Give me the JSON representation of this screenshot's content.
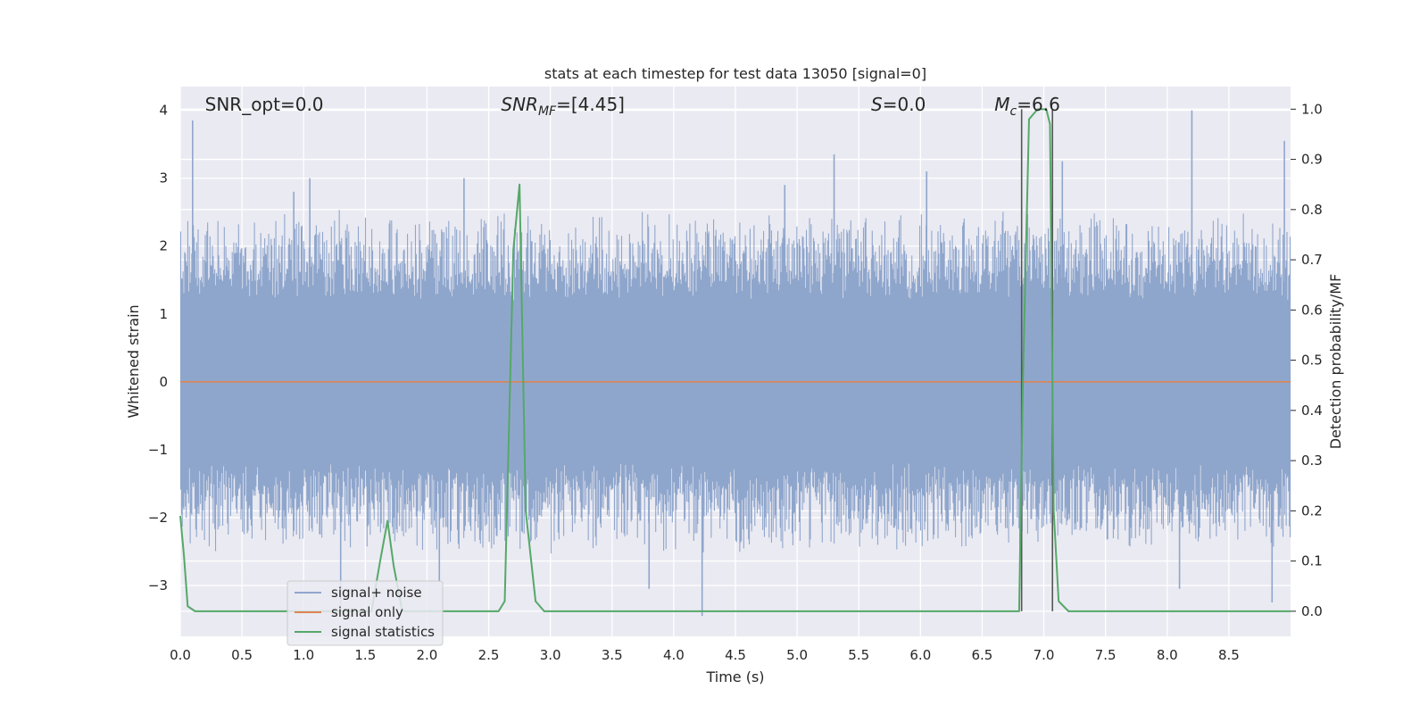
{
  "chart_data": {
    "type": "line",
    "title": "stats at each timestep for test data 13050 [signal=0]",
    "xlabel": "Time (s)",
    "ylabel_left": "Whitened strain",
    "ylabel_right": "Detection probability/MF",
    "xlim": [
      0,
      9.0
    ],
    "ylim_left": [
      -3.75,
      4.35
    ],
    "ylim_right": [
      -0.05,
      1.045
    ],
    "x_ticks": [
      "0.0",
      "0.5",
      "1.0",
      "1.5",
      "2.0",
      "2.5",
      "3.0",
      "3.5",
      "4.0",
      "4.5",
      "5.0",
      "5.5",
      "6.0",
      "6.5",
      "7.0",
      "7.5",
      "8.0",
      "8.5"
    ],
    "y_ticks_left": [
      "4",
      "3",
      "2",
      "1",
      "0",
      "−1",
      "−2",
      "−3"
    ],
    "y_ticks_right": [
      "1.0",
      "0.9",
      "0.8",
      "0.7",
      "0.6",
      "0.5",
      "0.4",
      "0.3",
      "0.2",
      "0.1",
      "0.0"
    ],
    "grid": true,
    "legend_position": "lower-left",
    "annotations": [
      {
        "name": "snr-opt",
        "text": "SNR_opt=0.0",
        "x": 0.2
      },
      {
        "name": "snr-mf",
        "text": "SNR",
        "sub": "MF",
        "rest": "=[4.45]",
        "x": 2.6
      },
      {
        "name": "stat-s",
        "text": "S",
        "rest": "=0.0",
        "x": 5.6
      },
      {
        "name": "chirp-mass",
        "text": "M",
        "sub": "c",
        "rest": "=6.6",
        "x": 6.6
      }
    ],
    "vlines": [
      6.82,
      7.07
    ],
    "series": [
      {
        "name": "signal+ noise",
        "color": "#8fa6cc",
        "axis": "left",
        "noise": true,
        "envelope_abs": 1.2,
        "typical_peak": 2.2,
        "spikes": [
          {
            "x": 0.1,
            "y": 3.85
          },
          {
            "x": 0.92,
            "y": 2.8
          },
          {
            "x": 1.05,
            "y": 3.0
          },
          {
            "x": 2.3,
            "y": 3.0
          },
          {
            "x": 4.9,
            "y": 2.9
          },
          {
            "x": 5.3,
            "y": 3.35
          },
          {
            "x": 6.05,
            "y": 3.1
          },
          {
            "x": 7.15,
            "y": 3.25
          },
          {
            "x": 8.2,
            "y": 4.0
          },
          {
            "x": 8.95,
            "y": 3.55
          },
          {
            "x": 4.23,
            "y": -3.45
          },
          {
            "x": 1.3,
            "y": -3.3
          },
          {
            "x": 3.8,
            "y": -3.05
          },
          {
            "x": 8.1,
            "y": -3.05
          },
          {
            "x": 8.85,
            "y": -3.25
          },
          {
            "x": 2.1,
            "y": -2.95
          }
        ]
      },
      {
        "name": "signal only",
        "color": "#dd8452",
        "axis": "left",
        "x": [
          0,
          9.0
        ],
        "y": [
          0,
          0
        ]
      },
      {
        "name": "signal statistics",
        "color": "#55a868",
        "axis": "right",
        "x": [
          0.0,
          0.03,
          0.06,
          0.12,
          0.25,
          1.55,
          1.62,
          1.68,
          1.73,
          1.8,
          2.58,
          2.63,
          2.7,
          2.75,
          2.8,
          2.88,
          2.95,
          6.8,
          6.83,
          6.88,
          6.95,
          7.02,
          7.05,
          7.08,
          7.12,
          7.2,
          7.35,
          9.0
        ],
        "y": [
          0.19,
          0.11,
          0.01,
          0.0,
          0.0,
          0.0,
          0.1,
          0.18,
          0.09,
          0.0,
          0.0,
          0.02,
          0.72,
          0.85,
          0.2,
          0.02,
          0.0,
          0.0,
          0.45,
          0.98,
          1.0,
          1.0,
          0.97,
          0.2,
          0.02,
          0.0,
          0.0,
          0.0
        ]
      }
    ]
  }
}
